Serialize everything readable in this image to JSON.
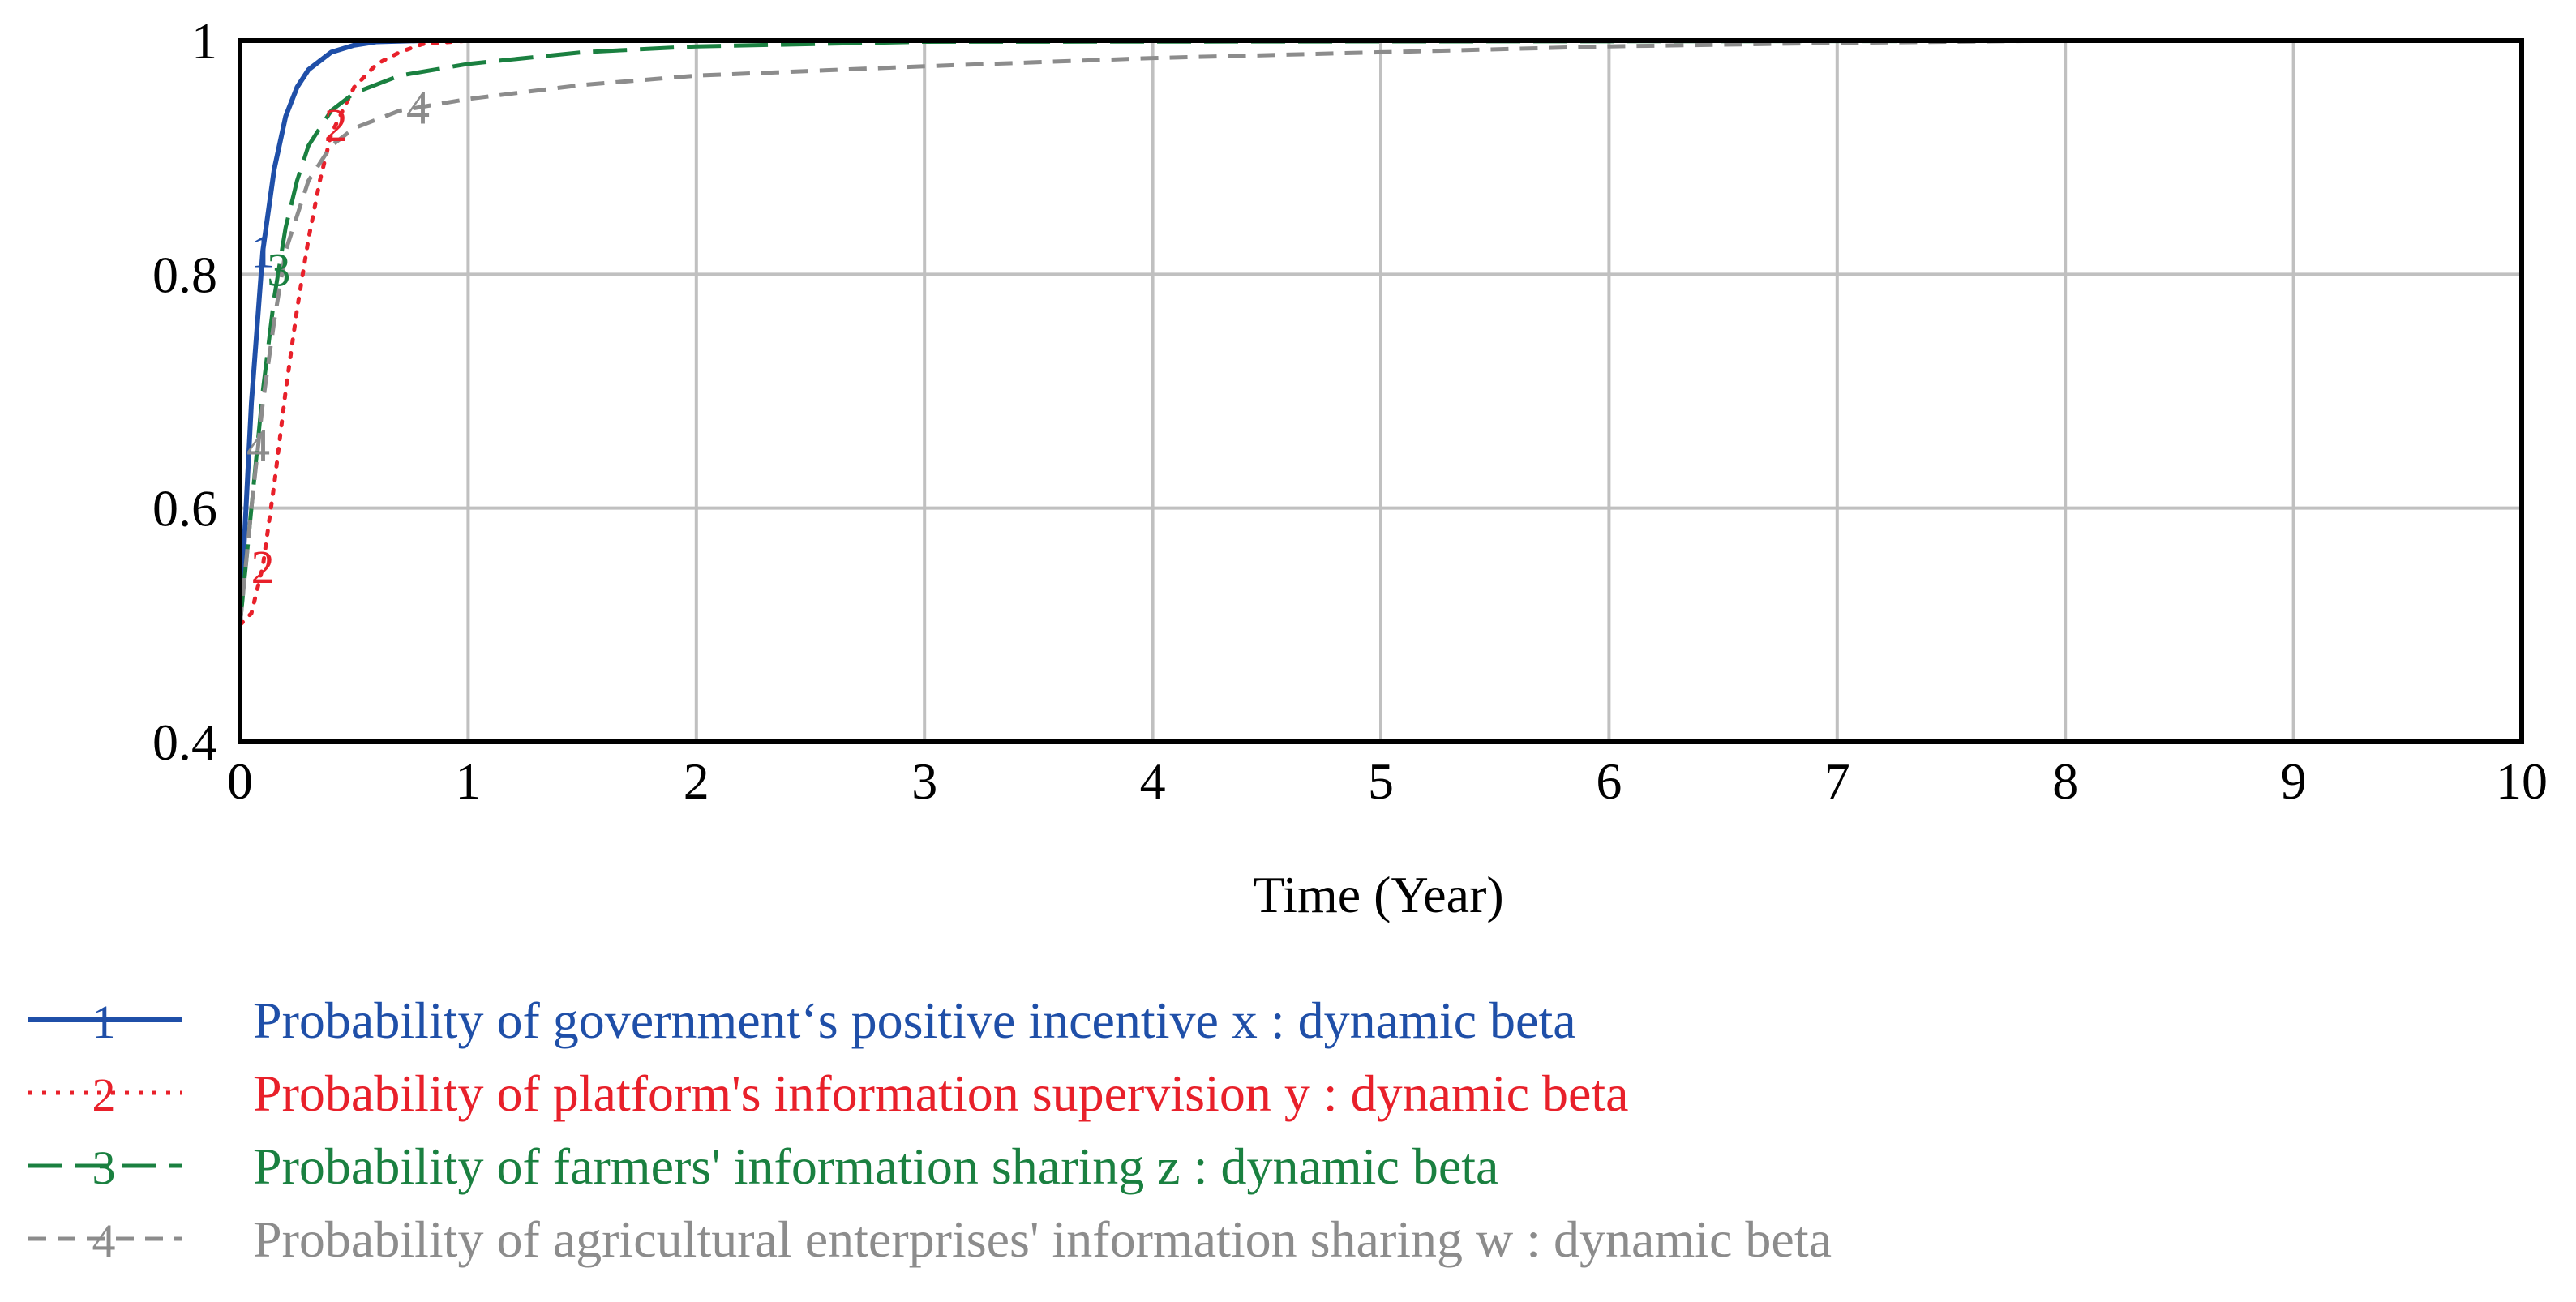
{
  "chart_data": {
    "type": "line",
    "xlabel": "Time (Year)",
    "ylabel": "",
    "xlim": [
      0,
      10
    ],
    "ylim": [
      0.4,
      1
    ],
    "xticks": [
      "0",
      "1",
      "2",
      "3",
      "4",
      "5",
      "6",
      "7",
      "8",
      "9",
      "10"
    ],
    "yticks": [
      "0.4",
      "0.6",
      "0.8",
      "1"
    ],
    "grid": true,
    "legend_position": "bottom",
    "series": [
      {
        "marker": "1",
        "name": "Probability of government‘s positive incentive x : dynamic beta",
        "color": "#1f4fa8",
        "dash": "solid",
        "x": [
          0,
          0.05,
          0.1,
          0.15,
          0.2,
          0.25,
          0.3,
          0.4,
          0.5,
          0.6,
          0.8,
          1,
          2,
          10
        ],
        "y": [
          0.5,
          0.69,
          0.82,
          0.89,
          0.935,
          0.96,
          0.975,
          0.99,
          0.996,
          0.999,
          1,
          1,
          1,
          1
        ]
      },
      {
        "marker": "2",
        "name": "Probability of platform's information supervision y : dynamic beta",
        "color": "#e8202a",
        "dash": "dotted",
        "x": [
          0,
          0.05,
          0.1,
          0.15,
          0.2,
          0.25,
          0.3,
          0.35,
          0.4,
          0.5,
          0.6,
          0.7,
          0.8,
          1,
          2,
          10
        ],
        "y": [
          0.5,
          0.51,
          0.55,
          0.62,
          0.7,
          0.77,
          0.83,
          0.88,
          0.92,
          0.96,
          0.98,
          0.99,
          0.997,
          1,
          1,
          1
        ]
      },
      {
        "marker": "3",
        "name": "Probability of farmers' information sharing z : dynamic beta",
        "color": "#1a8040",
        "dash": "longdash",
        "x": [
          0,
          0.05,
          0.1,
          0.15,
          0.2,
          0.25,
          0.3,
          0.4,
          0.5,
          0.7,
          1,
          1.5,
          2,
          3,
          10
        ],
        "y": [
          0.5,
          0.6,
          0.7,
          0.78,
          0.84,
          0.88,
          0.91,
          0.94,
          0.955,
          0.97,
          0.98,
          0.99,
          0.995,
          0.999,
          1
        ]
      },
      {
        "marker": "4",
        "name": "Probability of agricultural enterprises' information sharing w : dynamic beta",
        "color": "#8c8c8c",
        "dash": "dashed",
        "x": [
          0,
          0.05,
          0.1,
          0.15,
          0.2,
          0.3,
          0.4,
          0.5,
          0.7,
          1,
          1.5,
          2,
          3,
          4,
          5,
          6,
          7,
          8,
          10
        ],
        "y": [
          0.5,
          0.6,
          0.69,
          0.76,
          0.82,
          0.88,
          0.91,
          0.925,
          0.94,
          0.95,
          0.962,
          0.97,
          0.978,
          0.985,
          0.99,
          0.995,
          0.998,
          1,
          1
        ]
      }
    ]
  }
}
